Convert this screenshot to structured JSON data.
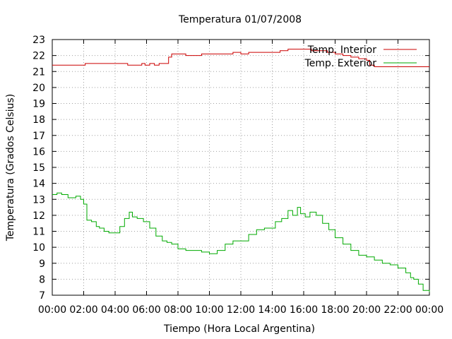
{
  "chart_data": {
    "type": "line",
    "title": "Temperatura 01/07/2008",
    "xlabel": "Tiempo (Hora Local Argentina)",
    "ylabel": "Temperatura (Grados Celsius)",
    "xlim": [
      0,
      24
    ],
    "ylim": [
      7,
      23
    ],
    "x_ticks": [
      "00:00",
      "02:00",
      "04:00",
      "06:00",
      "08:00",
      "10:00",
      "12:00",
      "14:00",
      "16:00",
      "18:00",
      "20:00",
      "22:00",
      "00:00"
    ],
    "y_ticks": [
      "7",
      "8",
      "9",
      "10",
      "11",
      "12",
      "13",
      "14",
      "15",
      "16",
      "17",
      "18",
      "19",
      "20",
      "21",
      "22",
      "23"
    ],
    "grid": true,
    "legend_position": "top-right",
    "series": [
      {
        "name": "Temp. Interior",
        "color": "#cc0000",
        "x": [
          0,
          2.0,
          2.1,
          4.7,
          4.8,
          5.6,
          5.7,
          5.9,
          6.2,
          6.5,
          6.8,
          7.2,
          7.4,
          7.6,
          8.4,
          8.5,
          9.0,
          9.5,
          10.0,
          10.5,
          11.0,
          11.5,
          12.0,
          12.5,
          13.0,
          14.0,
          14.5,
          15.0,
          16.0,
          16.5,
          17.0,
          17.5,
          18.0,
          18.5,
          19.0,
          19.5,
          20.0,
          20.2,
          20.5,
          21.0,
          22.0,
          22.5,
          23.0,
          24.0
        ],
        "values": [
          21.4,
          21.4,
          21.5,
          21.5,
          21.4,
          21.4,
          21.5,
          21.4,
          21.5,
          21.4,
          21.5,
          21.5,
          21.9,
          22.1,
          22.1,
          22.0,
          22.0,
          22.1,
          22.1,
          22.1,
          22.1,
          22.2,
          22.1,
          22.2,
          22.2,
          22.2,
          22.3,
          22.4,
          22.4,
          22.3,
          22.3,
          22.2,
          22.1,
          22.0,
          21.9,
          21.8,
          21.7,
          21.4,
          21.3,
          21.3,
          21.3,
          21.3,
          21.3,
          21.3
        ]
      },
      {
        "name": "Temp. Exterior",
        "color": "#00aa00",
        "x": [
          0,
          0.3,
          0.6,
          1.0,
          1.3,
          1.5,
          1.8,
          2.0,
          2.2,
          2.5,
          2.8,
          3.0,
          3.3,
          3.6,
          4.0,
          4.3,
          4.6,
          4.9,
          5.1,
          5.4,
          5.8,
          6.2,
          6.6,
          7.0,
          7.3,
          7.6,
          8.0,
          8.5,
          9.0,
          9.5,
          10.0,
          10.5,
          11.0,
          11.5,
          12.0,
          12.5,
          13.0,
          13.5,
          13.8,
          14.2,
          14.6,
          15.0,
          15.3,
          15.6,
          15.8,
          16.1,
          16.4,
          16.8,
          17.2,
          17.6,
          18.0,
          18.5,
          19.0,
          19.5,
          20.0,
          20.5,
          21.0,
          21.5,
          22.0,
          22.5,
          22.8,
          23.0,
          23.3,
          23.6,
          24.0
        ],
        "values": [
          13.3,
          13.4,
          13.3,
          13.1,
          13.1,
          13.2,
          13.0,
          12.7,
          11.7,
          11.6,
          11.3,
          11.2,
          11.0,
          10.9,
          10.9,
          11.3,
          11.8,
          12.2,
          11.9,
          11.8,
          11.6,
          11.2,
          10.7,
          10.4,
          10.3,
          10.2,
          9.9,
          9.8,
          9.8,
          9.7,
          9.6,
          9.8,
          10.2,
          10.4,
          10.4,
          10.8,
          11.1,
          11.2,
          11.2,
          11.6,
          11.8,
          12.3,
          12.0,
          12.5,
          12.1,
          11.9,
          12.2,
          12.0,
          11.5,
          11.1,
          10.6,
          10.2,
          9.8,
          9.5,
          9.4,
          9.2,
          9.0,
          8.9,
          8.7,
          8.4,
          8.1,
          8.0,
          7.7,
          7.3,
          7.2
        ]
      }
    ]
  }
}
